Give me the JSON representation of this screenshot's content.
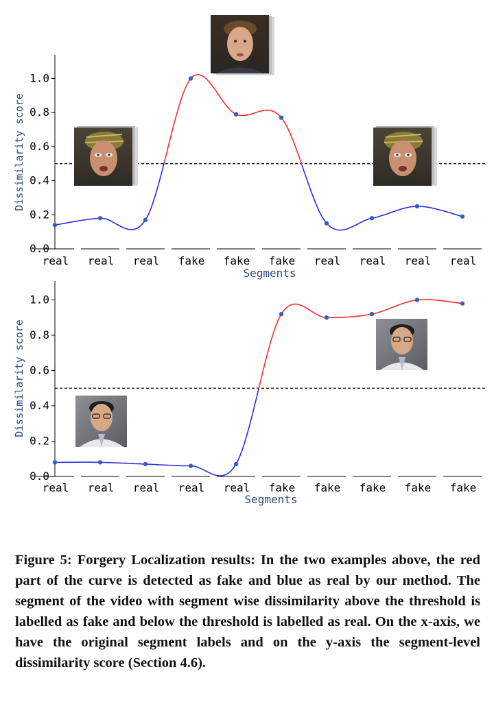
{
  "figure": {
    "caption": "Figure 5: Forgery Localization results: In the two examples above, the red part of the curve is detected as fake and blue as real by our method. The segment of the video with segment wise dissimilarity above the threshold is labelled as fake and below the threshold is labelled as real. On the x-axis, we have the original segment labels and on the y-axis the segment-level dissimilarity score (Section 4.6)."
  },
  "colors": {
    "fake": "#ff2a2a",
    "real": "#2a2aee",
    "point": "#3060c0",
    "threshold": "#000000",
    "axis_label": "#2b4a7a"
  },
  "chart_data": [
    {
      "type": "line",
      "xlabel": "Segments",
      "ylabel": "Dissimilarity score",
      "categories": [
        "real",
        "real",
        "real",
        "fake",
        "fake",
        "fake",
        "real",
        "real",
        "real",
        "real"
      ],
      "values": [
        0.14,
        0.18,
        0.17,
        1.0,
        0.79,
        0.77,
        0.15,
        0.18,
        0.25,
        0.19
      ],
      "threshold": 0.5,
      "ylim": [
        0.0,
        1.1
      ],
      "yticks": [
        "0.0",
        "0.2",
        "0.4",
        "0.6",
        "0.8",
        "1.0"
      ],
      "grid": false,
      "face_icons": [
        "face-thumbnail-icon",
        "face-thumbnail-icon",
        "face-thumbnail-icon"
      ]
    },
    {
      "type": "line",
      "xlabel": "Segments",
      "ylabel": "Dissimilarity score",
      "categories": [
        "real",
        "real",
        "real",
        "real",
        "real",
        "fake",
        "fake",
        "fake",
        "fake",
        "fake"
      ],
      "values": [
        0.08,
        0.08,
        0.07,
        0.06,
        0.07,
        0.92,
        0.9,
        0.92,
        1.0,
        0.98
      ],
      "threshold": 0.5,
      "ylim": [
        0.0,
        1.1
      ],
      "yticks": [
        "0.0",
        "0.2",
        "0.4",
        "0.6",
        "0.8",
        "1.0"
      ],
      "grid": false,
      "face_icons": [
        "face-thumbnail-icon",
        "face-thumbnail-icon"
      ]
    }
  ]
}
